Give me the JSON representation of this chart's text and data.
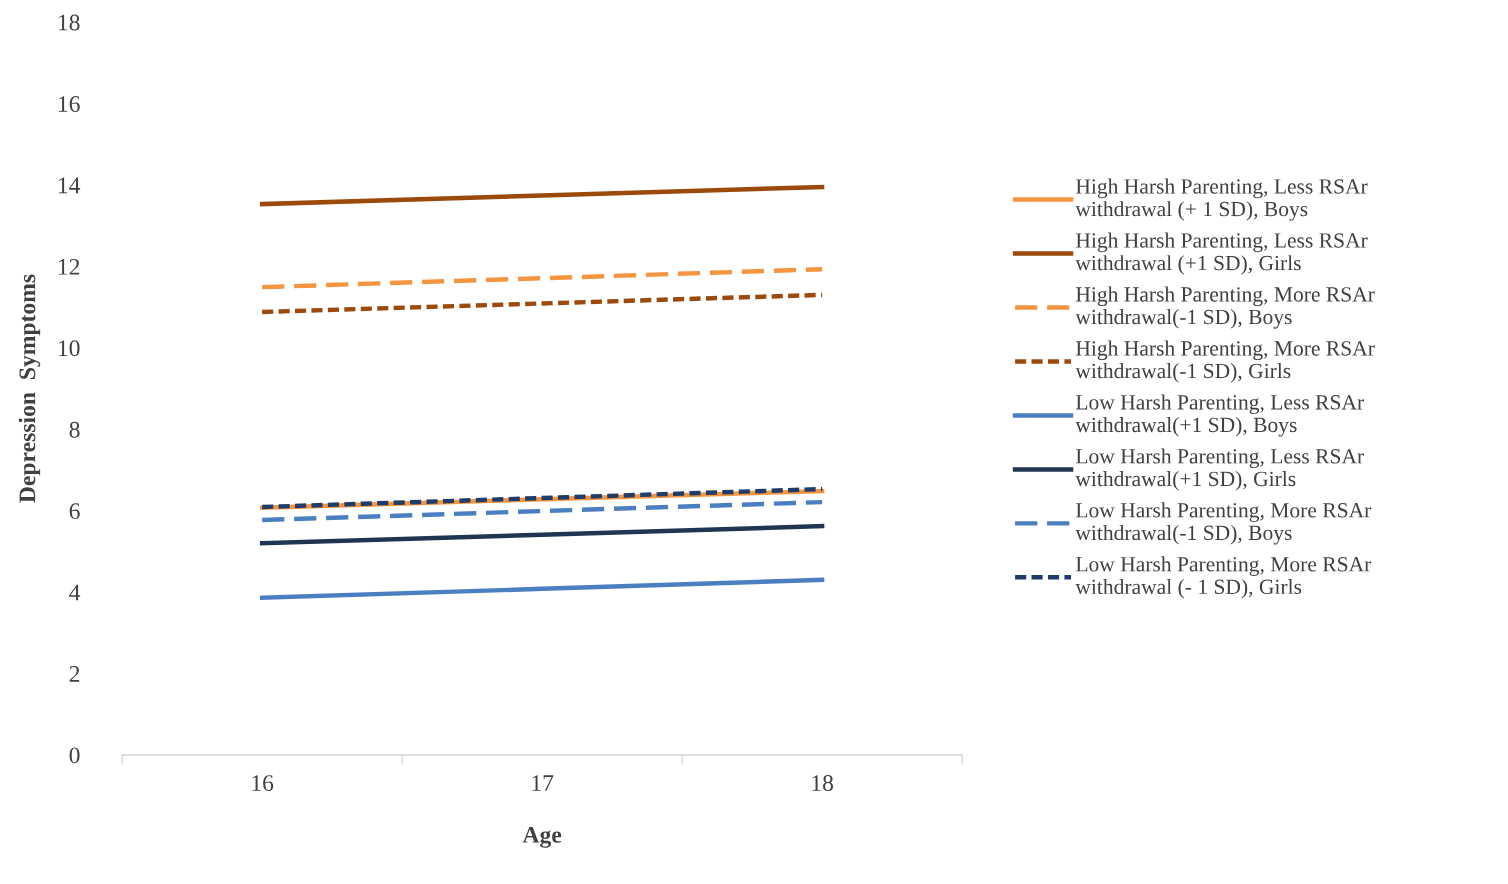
{
  "chart_data": {
    "type": "line",
    "xlabel": "Age",
    "ylabel": "Depression  Symptoms",
    "categories": [
      "16",
      "17",
      "18"
    ],
    "ylim": [
      0,
      18
    ],
    "yticks": [
      0,
      2,
      4,
      6,
      8,
      10,
      12,
      14,
      16,
      18
    ],
    "grid": false,
    "legend": "right",
    "marker": "none",
    "series": [
      {
        "name": "High Harsh Parenting, Less RSAr\nwithdrawal (+ 1 SD), Boys",
        "color": "#f4953f",
        "line_style": "solid",
        "values": [
          6.07,
          6.28,
          6.48
        ]
      },
      {
        "name": "High Harsh Parenting, Less RSAr\nwithdrawal (+1 SD), Girls",
        "color": "#9c4a0c",
        "line_style": "solid",
        "values": [
          13.53,
          13.74,
          13.95
        ]
      },
      {
        "name": "High Harsh Parenting, More RSAr\nwithdrawal(-1 SD), Boys",
        "color": "#f4953f",
        "line_style": "dashed",
        "values": [
          11.49,
          11.71,
          11.93
        ]
      },
      {
        "name": "High Harsh Parenting, More RSAr\nwithdrawal(-1 SD), Girls",
        "color": "#9c4a0c",
        "line_style": "dotted",
        "values": [
          10.88,
          11.09,
          11.3
        ]
      },
      {
        "name": "Low Harsh Parenting, Less RSAr\nwithdrawal(+1 SD), Boys",
        "color": "#4a7fc1",
        "line_style": "solid",
        "values": [
          3.86,
          4.08,
          4.3
        ]
      },
      {
        "name": "Low Harsh Parenting, Less RSAr\nwithdrawal(+1 SD), Girls",
        "color": "#1f3552",
        "line_style": "solid",
        "values": [
          5.2,
          5.41,
          5.62
        ]
      },
      {
        "name": "Low Harsh Parenting, More RSAr\nwithdrawal(-1 SD), Boys",
        "color": "#4a7fc1",
        "line_style": "dashed",
        "values": [
          5.77,
          5.99,
          6.21
        ]
      },
      {
        "name": "Low Harsh Parenting, More RSAr\nwithdrawal (- 1 SD), Girls",
        "color": "#1f3d6b",
        "line_style": "dotted",
        "values": [
          6.09,
          6.31,
          6.53
        ]
      }
    ]
  }
}
